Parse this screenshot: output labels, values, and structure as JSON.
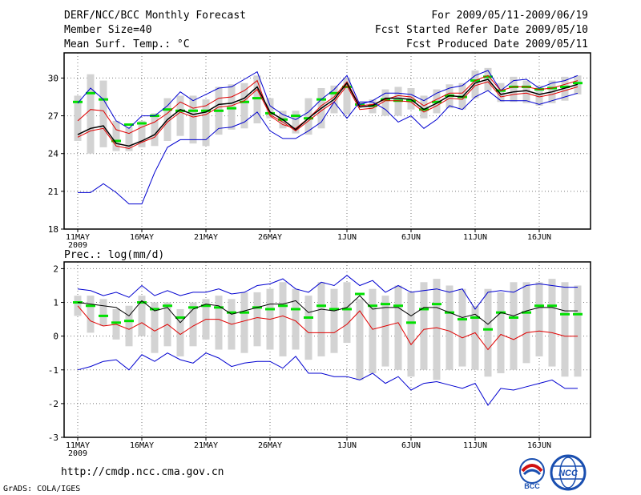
{
  "header": {
    "title": "DERF/NCC/BCC Monthly Forecast",
    "member_size": "Member Size=40",
    "variable": "Mean Surf. Temp.: °C",
    "period": "For 2009/05/11-2009/06/19",
    "start_date": "Fcst Started Refer Date 2009/05/10",
    "produced_date": "Fcst Produced Date 2009/05/11"
  },
  "footer": {
    "url": "http://cmdp.ncc.cma.gov.cn",
    "credit": "GrADS: COLA/IGES",
    "logo_bcc": "BCC",
    "logo_ncc": "NCC"
  },
  "colors": {
    "box": "#d3d3d3",
    "green": "#00e000",
    "red": "#e00000",
    "blue": "#0000d0",
    "mean": "#000000",
    "grid": "#777777"
  },
  "chart_data": [
    {
      "type": "line",
      "title": "Mean Surf. Temp.: °C",
      "xlabel": "",
      "ylabel": "°C",
      "x_start": "2009-05-11",
      "days": 40,
      "ylim": [
        18,
        32
      ],
      "yticks": [
        18,
        21,
        24,
        27,
        30
      ],
      "xticks": [
        {
          "day": 0,
          "label": "11MAY"
        },
        {
          "day": 5,
          "label": "16MAY"
        },
        {
          "day": 10,
          "label": "21MAY"
        },
        {
          "day": 15,
          "label": "26MAY"
        },
        {
          "day": 21,
          "label": "1JUN"
        },
        {
          "day": 26,
          "label": "6JUN"
        },
        {
          "day": 31,
          "label": "11JUN"
        },
        {
          "day": 36,
          "label": "16JUN"
        }
      ],
      "year_label": "2009",
      "box_lo": [
        25.0,
        24.0,
        24.5,
        24.2,
        24.2,
        24.5,
        24.6,
        25.0,
        25.4,
        24.8,
        24.6,
        25.5,
        25.9,
        26.0,
        26.4,
        26.8,
        26.0,
        25.6,
        25.5,
        26.0,
        27.2,
        27.1,
        28.0,
        27.2,
        27.0,
        27.0,
        27.5,
        26.8,
        27.2,
        27.6,
        27.5,
        28.4,
        29.0,
        28.1,
        28.1,
        28.0,
        27.8,
        28.0,
        28.2,
        28.7
      ],
      "box_hi": [
        28.6,
        30.3,
        29.8,
        26.6,
        26.1,
        26.6,
        27.2,
        28.4,
        28.6,
        28.6,
        28.3,
        29.3,
        29.5,
        29.6,
        30.2,
        28.4,
        27.4,
        27.4,
        28.4,
        29.2,
        29.4,
        30.0,
        28.1,
        28.3,
        29.1,
        29.3,
        29.2,
        28.6,
        29.1,
        29.5,
        29.6,
        30.6,
        30.8,
        29.6,
        30.1,
        29.8,
        29.4,
        29.8,
        30.1,
        30.2
      ],
      "green": [
        28.1,
        28.8,
        28.3,
        25.0,
        26.3,
        26.4,
        27.0,
        27.5,
        27.4,
        27.4,
        27.4,
        27.4,
        27.6,
        28.1,
        28.4,
        27.2,
        26.7,
        27.0,
        26.8,
        28.3,
        28.8,
        29.3,
        27.9,
        27.8,
        28.3,
        28.2,
        28.2,
        27.5,
        28.1,
        28.6,
        28.5,
        29.8,
        30.1,
        29.0,
        29.3,
        29.3,
        29.1,
        29.2,
        29.3,
        29.6
      ],
      "series": [
        {
          "name": "max",
          "color": "#0000d0",
          "values": [
            28.0,
            29.2,
            28.3,
            26.6,
            26.0,
            27.0,
            27.0,
            27.8,
            28.9,
            28.2,
            28.7,
            29.2,
            29.3,
            29.9,
            30.5,
            27.8,
            27.1,
            26.7,
            27.3,
            28.3,
            29.1,
            30.2,
            27.9,
            28.2,
            28.8,
            28.8,
            28.7,
            28.2,
            28.8,
            29.2,
            29.4,
            30.2,
            30.6,
            29.0,
            29.8,
            29.9,
            29.2,
            29.6,
            29.8,
            30.2
          ]
        },
        {
          "name": "upper",
          "color": "#e00000",
          "values": [
            26.6,
            27.5,
            27.4,
            25.9,
            25.6,
            26.1,
            26.5,
            27.2,
            28.1,
            27.6,
            27.8,
            28.4,
            28.5,
            29.0,
            29.8,
            27.0,
            26.3,
            26.0,
            26.8,
            27.8,
            28.5,
            29.7,
            27.8,
            27.9,
            28.3,
            28.6,
            28.5,
            27.8,
            28.3,
            28.8,
            28.8,
            29.8,
            30.2,
            29.0,
            29.3,
            29.3,
            29.1,
            29.2,
            29.5,
            29.8
          ]
        },
        {
          "name": "mean",
          "color": "#000000",
          "values": [
            25.5,
            26.0,
            26.2,
            24.8,
            24.6,
            25.0,
            25.5,
            26.7,
            27.5,
            27.1,
            27.3,
            27.9,
            28.0,
            28.4,
            29.3,
            27.3,
            26.7,
            25.9,
            26.8,
            27.6,
            28.3,
            29.6,
            27.7,
            27.8,
            28.4,
            28.4,
            28.3,
            27.5,
            28.0,
            28.6,
            28.5,
            29.6,
            29.9,
            28.7,
            28.9,
            29.0,
            28.7,
            28.9,
            29.2,
            29.5
          ]
        },
        {
          "name": "lower",
          "color": "#e00000",
          "values": [
            25.3,
            25.8,
            26.0,
            24.6,
            24.4,
            24.9,
            25.3,
            26.5,
            27.3,
            26.9,
            27.1,
            27.7,
            27.8,
            28.2,
            29.1,
            27.1,
            26.5,
            25.8,
            26.6,
            27.4,
            28.1,
            29.4,
            27.5,
            27.6,
            28.2,
            28.2,
            28.1,
            27.3,
            27.8,
            28.4,
            28.3,
            29.4,
            29.7,
            28.5,
            28.7,
            28.8,
            28.5,
            28.7,
            29.0,
            29.3
          ]
        },
        {
          "name": "min",
          "color": "#0000d0",
          "values": [
            20.9,
            20.9,
            21.6,
            20.9,
            20.0,
            20.0,
            22.5,
            24.5,
            25.1,
            25.1,
            25.1,
            26.0,
            26.1,
            26.5,
            27.3,
            25.8,
            25.2,
            25.2,
            25.8,
            26.5,
            28.1,
            26.8,
            28.1,
            28.1,
            27.5,
            26.5,
            27.0,
            26.0,
            26.7,
            27.8,
            27.5,
            28.5,
            29.0,
            28.2,
            28.2,
            28.2,
            27.9,
            28.2,
            28.5,
            28.8
          ]
        }
      ]
    },
    {
      "type": "line",
      "title": "Prec.: log(mm/d)",
      "xlabel": "",
      "ylabel": "log(mm/d)",
      "x_start": "2009-05-11",
      "days": 40,
      "ylim": [
        -3,
        2.2
      ],
      "yticks": [
        -3,
        -2,
        -1,
        0,
        1,
        2
      ],
      "xticks": [
        {
          "day": 0,
          "label": "11MAY"
        },
        {
          "day": 5,
          "label": "16MAY"
        },
        {
          "day": 10,
          "label": "21MAY"
        },
        {
          "day": 15,
          "label": "26MAY"
        },
        {
          "day": 21,
          "label": "1JUN"
        },
        {
          "day": 26,
          "label": "6JUN"
        },
        {
          "day": 31,
          "label": "11JUN"
        },
        {
          "day": 36,
          "label": "16JUN"
        }
      ],
      "year_label": "2009",
      "box_lo": [
        0.6,
        0.1,
        0.3,
        -0.1,
        -0.3,
        0.0,
        -0.5,
        -0.3,
        -0.6,
        -0.3,
        -0.1,
        -0.4,
        -0.4,
        -0.5,
        -0.3,
        -0.4,
        -0.6,
        -0.4,
        -0.7,
        -0.6,
        -0.5,
        -0.2,
        -1.3,
        -1.1,
        -0.9,
        -1.0,
        -1.2,
        -1.0,
        -1.3,
        -1.0,
        -0.9,
        -1.0,
        -1.2,
        -1.1,
        -1.0,
        -0.8,
        -0.6,
        -0.9,
        -1.2,
        -1.2
      ],
      "box_hi": [
        1.2,
        1.2,
        1.1,
        0.8,
        0.9,
        1.2,
        1.0,
        1.0,
        0.8,
        1.0,
        1.1,
        1.2,
        1.1,
        1.3,
        1.3,
        1.4,
        1.6,
        1.4,
        1.2,
        1.6,
        1.4,
        1.6,
        1.1,
        1.4,
        1.2,
        1.5,
        1.3,
        1.6,
        1.7,
        1.5,
        1.4,
        0.9,
        1.4,
        1.3,
        1.6,
        1.6,
        1.6,
        1.7,
        1.6,
        1.5
      ],
      "green": [
        1.0,
        0.9,
        0.6,
        0.4,
        0.45,
        1.0,
        0.8,
        0.9,
        0.55,
        0.85,
        0.9,
        0.85,
        0.7,
        0.7,
        0.85,
        0.8,
        0.9,
        0.8,
        0.55,
        0.9,
        0.8,
        0.8,
        1.25,
        0.9,
        0.95,
        0.9,
        0.4,
        0.8,
        0.95,
        0.7,
        0.5,
        0.55,
        0.2,
        0.7,
        0.55,
        0.7,
        0.9,
        0.9,
        0.65,
        0.65
      ],
      "series": [
        {
          "name": "max",
          "color": "#0000d0",
          "values": [
            1.4,
            1.35,
            1.2,
            1.3,
            1.15,
            1.5,
            1.2,
            1.35,
            1.2,
            1.3,
            1.3,
            1.4,
            1.25,
            1.3,
            1.5,
            1.55,
            1.7,
            1.4,
            1.3,
            1.6,
            1.5,
            1.8,
            1.5,
            1.65,
            1.3,
            1.5,
            1.3,
            1.35,
            1.4,
            1.3,
            1.4,
            0.8,
            1.3,
            1.35,
            1.3,
            1.5,
            1.55,
            1.5,
            1.45,
            1.45
          ]
        },
        {
          "name": "upper",
          "color": "#000000",
          "values": [
            1.0,
            0.95,
            0.9,
            0.85,
            0.6,
            1.05,
            0.75,
            0.85,
            0.4,
            0.8,
            0.95,
            0.9,
            0.65,
            0.75,
            0.85,
            0.95,
            0.95,
            1.05,
            0.7,
            0.8,
            0.75,
            0.85,
            1.2,
            0.8,
            0.85,
            0.85,
            0.6,
            0.85,
            0.85,
            0.7,
            0.55,
            0.65,
            0.35,
            0.7,
            0.6,
            0.75,
            0.85,
            0.85,
            0.75,
            0.75
          ]
        },
        {
          "name": "mean",
          "color": "#e00000",
          "values": [
            0.9,
            0.45,
            0.3,
            0.35,
            0.2,
            0.4,
            0.15,
            0.35,
            0.05,
            0.3,
            0.5,
            0.5,
            0.35,
            0.45,
            0.55,
            0.5,
            0.6,
            0.45,
            0.1,
            0.1,
            0.1,
            0.35,
            0.75,
            0.2,
            0.3,
            0.4,
            -0.25,
            0.2,
            0.25,
            0.15,
            -0.05,
            0.1,
            -0.4,
            0.05,
            -0.1,
            0.1,
            0.15,
            0.1,
            0.0,
            0.0
          ]
        },
        {
          "name": "min",
          "color": "#0000d0",
          "values": [
            -1.0,
            -0.9,
            -0.75,
            -0.7,
            -1.0,
            -0.55,
            -0.75,
            -0.5,
            -0.7,
            -0.8,
            -0.5,
            -0.65,
            -0.9,
            -0.8,
            -0.75,
            -0.75,
            -0.95,
            -0.6,
            -1.1,
            -1.1,
            -1.2,
            -1.2,
            -1.3,
            -1.1,
            -1.4,
            -1.2,
            -1.6,
            -1.4,
            -1.35,
            -1.45,
            -1.55,
            -1.4,
            -2.05,
            -1.55,
            -1.6,
            -1.5,
            -1.4,
            -1.3,
            -1.55,
            -1.55
          ]
        }
      ]
    }
  ]
}
